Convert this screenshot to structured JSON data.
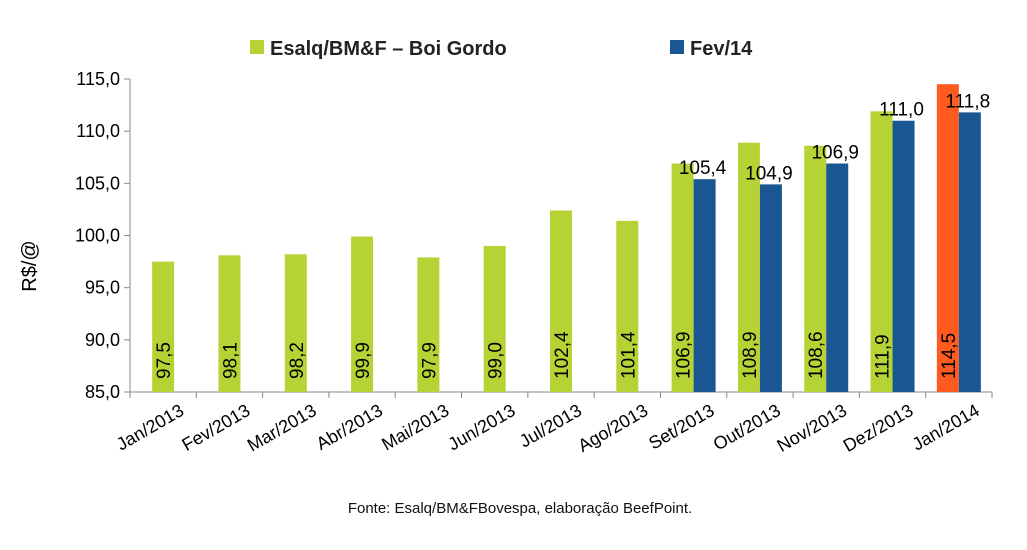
{
  "chart_data": {
    "type": "bar",
    "title": "",
    "xlabel": "",
    "ylabel": "R$/@",
    "ylim": [
      85,
      115
    ],
    "yticks": [
      "85,0",
      "90,0",
      "95,0",
      "100,0",
      "105,0",
      "110,0",
      "115,0"
    ],
    "ytick_values": [
      85,
      90,
      95,
      100,
      105,
      110,
      115
    ],
    "grid": false,
    "legend_position": "top-center",
    "categories": [
      "Jan/2013",
      "Fev/2013",
      "Mar/2013",
      "Abr/2013",
      "Mai/2013",
      "Jun/2013",
      "Jul/2013",
      "Ago/2013",
      "Set/2013",
      "Out/2013",
      "Nov/2013",
      "Dez/2013",
      "Jan/2014"
    ],
    "series": [
      {
        "name": "Esalq/BM&F – Boi Gordo",
        "color": "#b5d334",
        "highlight_color": "#ff5a1f",
        "highlight_index": 12,
        "values": [
          97.5,
          98.1,
          98.2,
          99.9,
          97.9,
          99.0,
          102.4,
          101.4,
          106.9,
          108.9,
          108.6,
          111.9,
          114.5
        ],
        "labels": [
          "97,5",
          "98,1",
          "98,2",
          "99,9",
          "97,9",
          "99,0",
          "102,4",
          "101,4",
          "106,9",
          "108,9",
          "108,6",
          "111,9",
          "114,5"
        ],
        "label_style": "inside-rotated"
      },
      {
        "name": "Fev/14",
        "color": "#1a5691",
        "values": [
          null,
          null,
          null,
          null,
          null,
          null,
          null,
          null,
          105.4,
          104.9,
          106.9,
          111.0,
          111.8
        ],
        "labels": [
          "",
          "",
          "",
          "",
          "",
          "",
          "",
          "",
          "105,4",
          "104,9",
          "106,9",
          "111,0",
          "111,8"
        ],
        "label_style": "above"
      }
    ],
    "source_note": "Fonte:  Esalq/BM&FBovespa,  elaboração  BeefPoint."
  }
}
